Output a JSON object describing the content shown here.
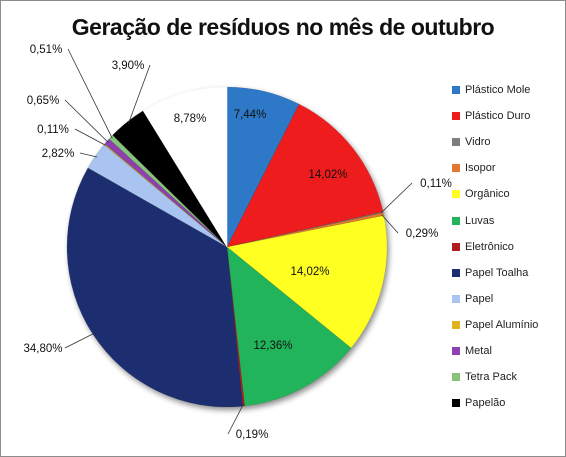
{
  "chart_data": {
    "type": "pie",
    "title": "Geração de resíduos no mês de outubro",
    "legend_position": "right",
    "slices": [
      {
        "name": "Plástico Mole",
        "value": 7.44,
        "label": "7,44%",
        "color": "#2f78c8"
      },
      {
        "name": "Plástico Duro",
        "value": 14.02,
        "label": "14,02%",
        "color": "#ee1c1c"
      },
      {
        "name": "Vidro",
        "value": 0.11,
        "label": "0,11%",
        "color": "#7f7f7f"
      },
      {
        "name": "Isopor",
        "value": 0.29,
        "label": "0,29%",
        "color": "#e07a2e"
      },
      {
        "name": "Orgânico",
        "value": 14.02,
        "label": "14,02%",
        "color": "#ffff22"
      },
      {
        "name": "Luvas",
        "value": 12.36,
        "label": "12,36%",
        "color": "#22b45a"
      },
      {
        "name": "Eletrônico",
        "value": 0.19,
        "label": "0,19%",
        "color": "#b21c1c"
      },
      {
        "name": "Papel Toalha",
        "value": 34.8,
        "label": "34,80%",
        "color": "#1a2f70"
      },
      {
        "name": "Papel",
        "value": 2.82,
        "label": "2,82%",
        "color": "#a9c4f0"
      },
      {
        "name": "Papel Alumínio",
        "value": 0.11,
        "label": "0,11%",
        "color": "#ddb21e"
      },
      {
        "name": "Metal",
        "value": 0.65,
        "label": "0,65%",
        "color": "#8e3fb0"
      },
      {
        "name": "Tetra Pack",
        "value": 0.51,
        "label": "0,51%",
        "color": "#86c47a"
      },
      {
        "name": "Papelão",
        "value": 3.9,
        "label": "3,90%",
        "color": "#000000"
      },
      {
        "name": "",
        "value": 8.78,
        "label": "8,78%",
        "color": "#ffffff"
      }
    ]
  }
}
